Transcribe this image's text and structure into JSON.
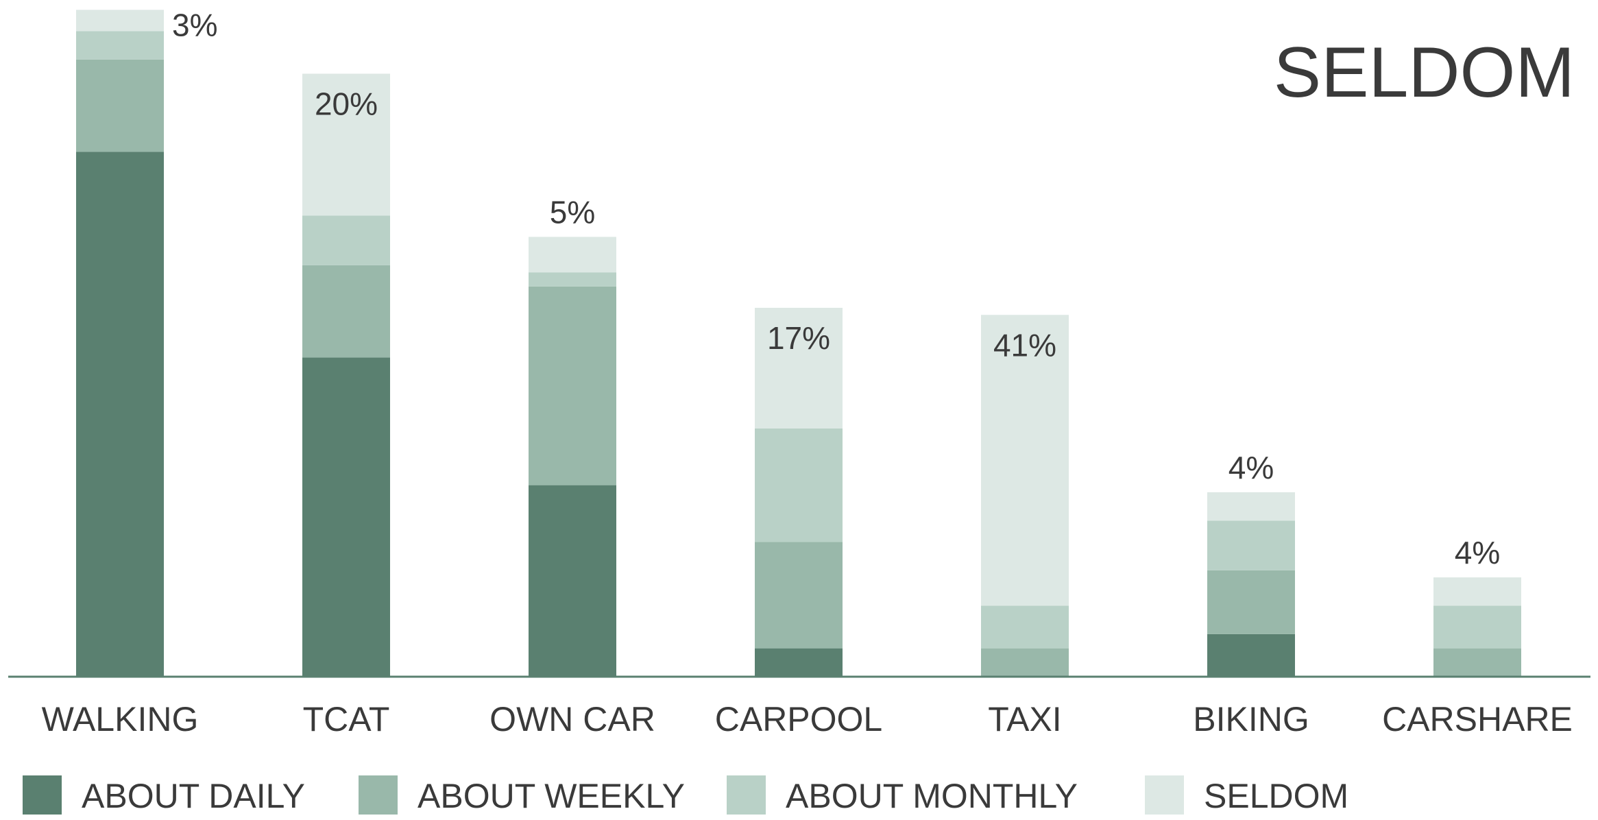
{
  "chart_data": {
    "type": "stacked_bar",
    "title": "SELDOM",
    "categories": [
      "WALKING",
      "TCAT",
      "OWN CAR",
      "CARPOOL",
      "TAXI",
      "BIKING",
      "CARSHARE"
    ],
    "series": [
      {
        "name": "ABOUT DAILY",
        "color": "#5a8070",
        "values": [
          74,
          45,
          27,
          4,
          0,
          6,
          0
        ]
      },
      {
        "name": "ABOUT WEEKLY",
        "color": "#99b8aa",
        "values": [
          13,
          13,
          28,
          15,
          4,
          9,
          4
        ]
      },
      {
        "name": "ABOUT MONTHLY",
        "color": "#b9d1c7",
        "values": [
          4,
          7,
          2,
          16,
          6,
          7,
          6
        ]
      },
      {
        "name": "SELDOM",
        "color": "#dde8e4",
        "values": [
          3,
          20,
          5,
          17,
          41,
          4,
          4
        ],
        "value_labels": [
          "3%",
          "20%",
          "5%",
          "17%",
          "41%",
          "4%",
          "4%"
        ]
      }
    ],
    "ylim": [
      0,
      95
    ]
  }
}
